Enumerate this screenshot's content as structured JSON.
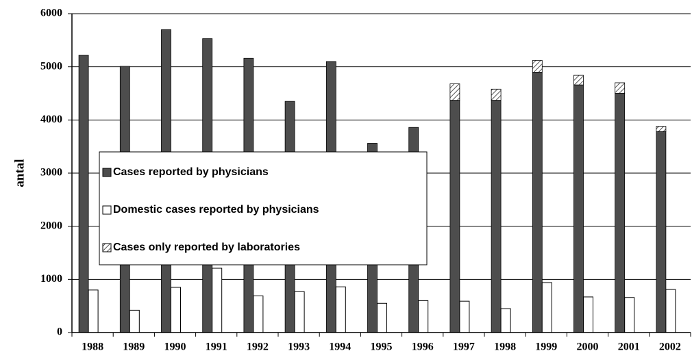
{
  "chart_data": {
    "type": "bar",
    "y_label": "antal",
    "categories": [
      "1988",
      "1989",
      "1990",
      "1991",
      "1992",
      "1993",
      "1994",
      "1995",
      "1996",
      "1997",
      "1998",
      "1999",
      "2000",
      "2001",
      "2002"
    ],
    "series": [
      {
        "name": "Cases reported by physicians",
        "color": "#4d4d4d",
        "values": [
          5220,
          5010,
          5700,
          5530,
          5160,
          4350,
          5100,
          3560,
          3860,
          4370,
          4370,
          4900,
          4660,
          4500,
          3780
        ]
      },
      {
        "name": "Domestic cases reported by physicians",
        "color": "#ffffff",
        "values": [
          800,
          420,
          850,
          1210,
          690,
          770,
          860,
          550,
          600,
          590,
          450,
          940,
          670,
          660,
          810
        ]
      },
      {
        "name": "Cases only reported by laboratories",
        "color": "#555555",
        "values": [
          null,
          null,
          null,
          null,
          null,
          null,
          null,
          null,
          null,
          310,
          210,
          220,
          180,
          200,
          100
        ]
      }
    ],
    "ylim": [
      0,
      6000
    ],
    "yticks": [
      0,
      1000,
      2000,
      3000,
      4000,
      5000,
      6000
    ],
    "grid": true
  }
}
